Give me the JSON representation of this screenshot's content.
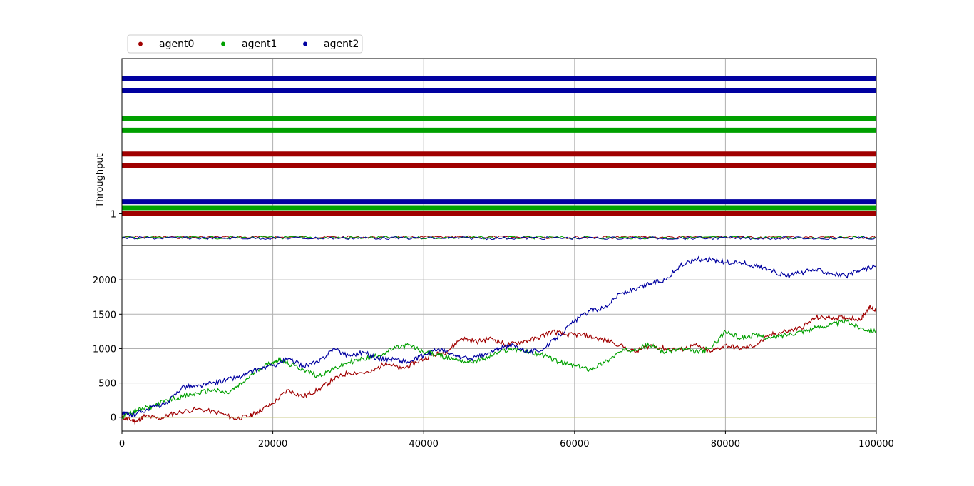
{
  "chart_data": [
    {
      "type": "scatter",
      "title": "",
      "xlabel": "",
      "ylabel": "Throughput",
      "xlim": [
        0,
        100000
      ],
      "grid": true,
      "legend_position": "top-left, above the plot",
      "yticks": [
        {
          "value": 1,
          "label": "1"
        }
      ],
      "legend": [
        {
          "name": "agent0",
          "color": "#a00000"
        },
        {
          "name": "agent1",
          "color": "#00a000"
        },
        {
          "name": "agent2",
          "color": "#0000a0"
        }
      ],
      "bands": [
        {
          "series": "agent2",
          "level": 8.4
        },
        {
          "series": "agent2",
          "level": 7.8
        },
        {
          "series": "agent1",
          "level": 6.4
        },
        {
          "series": "agent1",
          "level": 5.8
        },
        {
          "series": "agent0",
          "level": 4.6
        },
        {
          "series": "agent0",
          "level": 4.0
        },
        {
          "series": "agent2",
          "level": 2.2
        },
        {
          "series": "agent1",
          "level": 1.9
        },
        {
          "series": "agent0",
          "level": 1.6
        }
      ],
      "noise_lines": [
        "agent0",
        "agent1",
        "agent2"
      ]
    },
    {
      "type": "line",
      "title": "",
      "xlabel": "",
      "ylabel": "",
      "xlim": [
        0,
        100000
      ],
      "ylim": [
        -200,
        2500
      ],
      "grid": true,
      "xticks": [
        0,
        20000,
        40000,
        60000,
        80000,
        100000
      ],
      "yticks": [
        0,
        500,
        1000,
        1500,
        2000
      ],
      "series": [
        {
          "name": "agent0",
          "color": "#a00000",
          "x": [
            0,
            1000,
            2000,
            3000,
            5000,
            7000,
            10000,
            13000,
            15000,
            17000,
            18000,
            20000,
            22000,
            24000,
            26000,
            28000,
            30000,
            33000,
            35000,
            37000,
            39000,
            41000,
            43000,
            45000,
            47000,
            49000,
            51000,
            53000,
            55000,
            57000,
            59000,
            61000,
            63000,
            65000,
            68000,
            70000,
            72000,
            74000,
            76000,
            78000,
            80000,
            82000,
            84000,
            86000,
            88000,
            90000,
            92000,
            94000,
            96000,
            98000,
            99000,
            100000
          ],
          "y": [
            0,
            -30,
            -60,
            20,
            -20,
            60,
            120,
            60,
            -20,
            20,
            80,
            200,
            400,
            300,
            400,
            550,
            650,
            650,
            800,
            700,
            800,
            900,
            950,
            1150,
            1100,
            1150,
            1050,
            1100,
            1150,
            1250,
            1200,
            1200,
            1150,
            1100,
            950,
            1050,
            1000,
            980,
            1050,
            950,
            1050,
            1000,
            1050,
            1200,
            1250,
            1300,
            1450,
            1450,
            1450,
            1430,
            1600,
            1550
          ]
        },
        {
          "name": "agent1",
          "color": "#00a000",
          "x": [
            0,
            1000,
            2000,
            4000,
            6000,
            8000,
            10000,
            12000,
            14000,
            16000,
            18000,
            20000,
            21000,
            22000,
            24000,
            26000,
            28000,
            30000,
            32000,
            34000,
            36000,
            38000,
            40000,
            42000,
            44000,
            46000,
            48000,
            50000,
            52000,
            54000,
            56000,
            58000,
            60000,
            62000,
            64000,
            66000,
            68000,
            70000,
            72000,
            74000,
            76000,
            78000,
            80000,
            82000,
            84000,
            86000,
            88000,
            90000,
            92000,
            94000,
            96000,
            98000,
            100000
          ],
          "y": [
            0,
            60,
            100,
            160,
            250,
            300,
            350,
            400,
            350,
            500,
            700,
            800,
            850,
            780,
            700,
            600,
            700,
            800,
            850,
            900,
            1000,
            1050,
            950,
            900,
            850,
            800,
            850,
            950,
            1000,
            950,
            900,
            800,
            750,
            700,
            800,
            950,
            1000,
            1050,
            950,
            1000,
            950,
            1000,
            1250,
            1150,
            1200,
            1150,
            1200,
            1250,
            1300,
            1350,
            1400,
            1300,
            1250
          ]
        },
        {
          "name": "agent2",
          "color": "#0000a0",
          "x": [
            0,
            1000,
            2000,
            4000,
            6000,
            8000,
            10000,
            12000,
            14000,
            16000,
            18000,
            20000,
            22000,
            24000,
            26000,
            28000,
            30000,
            32000,
            34000,
            36000,
            38000,
            40000,
            42000,
            44000,
            46000,
            48000,
            50000,
            52000,
            54000,
            56000,
            58000,
            60000,
            62000,
            64000,
            66000,
            68000,
            70000,
            72000,
            74000,
            76000,
            78000,
            80000,
            82000,
            84000,
            86000,
            88000,
            90000,
            92000,
            94000,
            96000,
            98000,
            100000
          ],
          "y": [
            80,
            20,
            60,
            150,
            200,
            450,
            450,
            500,
            550,
            600,
            700,
            750,
            850,
            750,
            800,
            1000,
            900,
            950,
            850,
            850,
            800,
            900,
            1000,
            900,
            850,
            900,
            1000,
            1050,
            950,
            1000,
            1200,
            1400,
            1550,
            1600,
            1800,
            1850,
            1950,
            2000,
            2200,
            2300,
            2300,
            2250,
            2250,
            2200,
            2150,
            2050,
            2100,
            2150,
            2100,
            2050,
            2150,
            2200
          ]
        },
        {
          "name": "",
          "color": "#bfbf3f",
          "x": [
            0,
            100000
          ],
          "y": [
            0,
            0
          ]
        }
      ]
    }
  ]
}
